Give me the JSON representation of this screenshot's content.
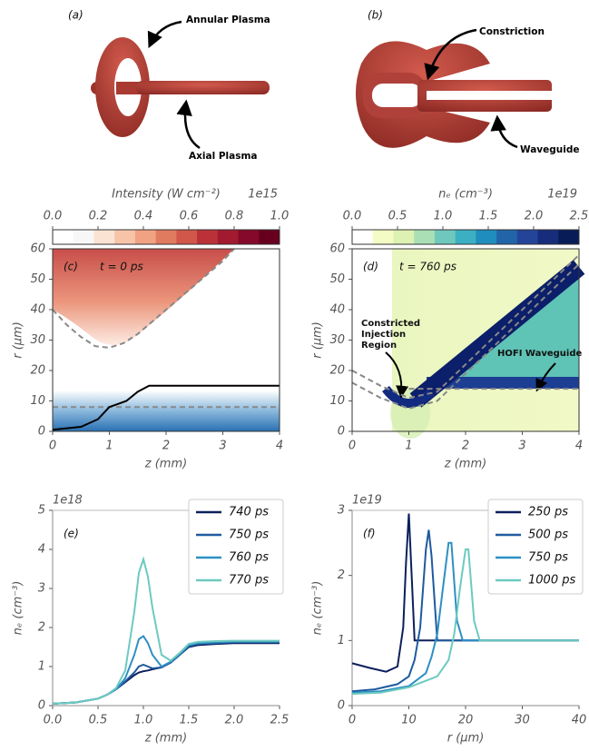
{
  "diagrams": [
    {
      "label": "(a)",
      "callouts": [
        "Annular Plasma",
        "Axial Plasma"
      ]
    },
    {
      "label": "(b)",
      "callouts": [
        "Constriction",
        "Waveguide"
      ]
    }
  ],
  "chart_data": [
    {
      "type": "heatmap",
      "panel_label": "(c)",
      "annotation": "t = 0 ps",
      "xlabel": "z (mm)",
      "ylabel": "r (μm)",
      "xlim": [
        0,
        4
      ],
      "ylim": [
        0,
        60
      ],
      "xticks": [
        0,
        1,
        2,
        3,
        4
      ],
      "yticks": [
        0,
        10,
        20,
        30,
        40,
        50,
        60
      ],
      "colorbar_label": "Intensity (W cm⁻²)",
      "colorbar_offset": "1e15",
      "clim": [
        0,
        1
      ],
      "cticks": [
        {
          "value": 0,
          "label": "0.0"
        },
        {
          "value": 0.2,
          "label": "0.2"
        },
        {
          "value": 0.4,
          "label": "0.4"
        },
        {
          "value": 0.6,
          "label": "0.6"
        },
        {
          "value": 0.8,
          "label": "0.8"
        },
        {
          "value": 1,
          "label": "1.0"
        }
      ],
      "colormap": [
        "#ffffff",
        "#f7f7f7",
        "#fbe3d4",
        "#f7c4a8",
        "#f0a283",
        "#e07b60",
        "#d0574a",
        "#bb3138",
        "#a21a2f",
        "#85092a",
        "#67001f"
      ],
      "series": [
        {
          "color": "#888888",
          "style": "dashed",
          "x": [
            0,
            0.25,
            0.5,
            0.75,
            1,
            1.25,
            1.5,
            2,
            2.5,
            3,
            3.2
          ],
          "values": [
            40,
            35,
            31,
            28,
            27.5,
            29,
            32,
            40,
            48,
            56,
            60
          ]
        },
        {
          "color": "#888888",
          "style": "dashed",
          "x": [
            0,
            4
          ],
          "values": [
            8,
            8
          ]
        },
        {
          "color": "#000000",
          "style": "solid",
          "x": [
            0,
            0.5,
            0.8,
            1,
            1.3,
            1.5,
            1.7,
            2,
            4
          ],
          "values": [
            0.5,
            1.5,
            4,
            8,
            10,
            13,
            15,
            15,
            15
          ]
        }
      ]
    },
    {
      "type": "heatmap",
      "panel_label": "(d)",
      "annotation": "t = 760 ps",
      "xlabel": "z (mm)",
      "ylabel": "r (μm)",
      "xlim": [
        0,
        4
      ],
      "ylim": [
        0,
        60
      ],
      "xticks": [
        0,
        1,
        2,
        3,
        4
      ],
      "yticks": [
        0,
        10,
        20,
        30,
        40,
        50,
        60
      ],
      "colorbar_label": "nₑ (cm⁻³)",
      "colorbar_offset": "1e19",
      "clim": [
        0,
        2.5
      ],
      "cticks": [
        {
          "value": 0,
          "label": "0.0"
        },
        {
          "value": 0.5,
          "label": "0.5"
        },
        {
          "value": 1,
          "label": "1.0"
        },
        {
          "value": 1.5,
          "label": "1.5"
        },
        {
          "value": 2,
          "label": "2.0"
        },
        {
          "value": 2.5,
          "label": "2.5"
        }
      ],
      "colormap": [
        "#ffffff",
        "#f4fbc4",
        "#dcf1b2",
        "#aadfb6",
        "#6fc8bd",
        "#3bb0c3",
        "#1f8dbd",
        "#2165a8",
        "#24449a",
        "#172c7a",
        "#081d58"
      ],
      "notes": [
        [
          "Constricted",
          "Injection",
          "Region"
        ],
        [
          "HOFI Waveguide"
        ]
      ],
      "series": [
        {
          "color": "#888888",
          "style": "dashed",
          "x": [
            0,
            0.5,
            1,
            1.5,
            2,
            3,
            4
          ],
          "values": [
            20,
            15,
            11,
            13,
            22,
            40,
            58
          ]
        },
        {
          "color": "#888888",
          "style": "dashed",
          "x": [
            0,
            0.5,
            1,
            1.5,
            2,
            3,
            4
          ],
          "values": [
            16,
            11,
            7.5,
            10,
            19,
            37,
            55
          ]
        },
        {
          "color": "#888888",
          "style": "dashed",
          "x": [
            1,
            4
          ],
          "values": [
            14,
            14
          ]
        }
      ]
    },
    {
      "type": "line",
      "panel_label": "(e)",
      "xlabel": "z (mm)",
      "ylabel": "nₑ (cm⁻³)",
      "offset": "1e18",
      "xlim": [
        0,
        2.5
      ],
      "ylim": [
        0,
        5
      ],
      "xticks": [
        {
          "value": 0,
          "label": "0.0"
        },
        {
          "value": 0.5,
          "label": "0.5"
        },
        {
          "value": 1,
          "label": "1.0"
        },
        {
          "value": 1.5,
          "label": "1.5"
        },
        {
          "value": 2,
          "label": "2.0"
        },
        {
          "value": 2.5,
          "label": "2.5"
        }
      ],
      "yticks": [
        0,
        1,
        2,
        3,
        4,
        5
      ],
      "legend": "upper right",
      "x": [
        0,
        0.25,
        0.5,
        0.6,
        0.7,
        0.8,
        0.9,
        0.95,
        1.0,
        1.05,
        1.1,
        1.2,
        1.3,
        1.4,
        1.5,
        1.6,
        1.8,
        2.0,
        2.5
      ],
      "series": [
        {
          "name": "740 ps",
          "color": "#0d1f5c",
          "values": [
            0.05,
            0.08,
            0.18,
            0.28,
            0.42,
            0.6,
            0.78,
            0.85,
            0.88,
            0.9,
            0.93,
            0.98,
            1.1,
            1.3,
            1.5,
            1.55,
            1.58,
            1.6,
            1.6
          ]
        },
        {
          "name": "750 ps",
          "color": "#1f5a9e",
          "values": [
            0.05,
            0.08,
            0.18,
            0.28,
            0.42,
            0.62,
            0.85,
            1.0,
            1.05,
            1.0,
            0.95,
            0.98,
            1.1,
            1.3,
            1.52,
            1.58,
            1.6,
            1.62,
            1.62
          ]
        },
        {
          "name": "760 ps",
          "color": "#2e8fc4",
          "values": [
            0.05,
            0.08,
            0.18,
            0.28,
            0.42,
            0.7,
            1.3,
            1.7,
            1.78,
            1.6,
            1.3,
            1.0,
            1.12,
            1.32,
            1.55,
            1.6,
            1.62,
            1.64,
            1.64
          ]
        },
        {
          "name": "770 ps",
          "color": "#6ccac0",
          "values": [
            0.05,
            0.08,
            0.18,
            0.28,
            0.45,
            0.9,
            2.4,
            3.4,
            3.75,
            3.3,
            2.5,
            1.3,
            1.15,
            1.35,
            1.58,
            1.63,
            1.65,
            1.66,
            1.66
          ]
        }
      ]
    },
    {
      "type": "line",
      "panel_label": "(f)",
      "xlabel": "r (μm)",
      "ylabel": "nₑ (cm⁻³)",
      "offset": "1e19",
      "xlim": [
        0,
        40
      ],
      "ylim": [
        0,
        3
      ],
      "xticks": [
        0,
        10,
        20,
        30,
        40
      ],
      "yticks": [
        0,
        1,
        2,
        3
      ],
      "legend": "upper right",
      "series": [
        {
          "name": "250 ps",
          "color": "#0d1f5c",
          "x": [
            0,
            3,
            6,
            8,
            9,
            9.5,
            10,
            10.5,
            11,
            12,
            14,
            40
          ],
          "values": [
            0.65,
            0.58,
            0.52,
            0.6,
            1.2,
            2.2,
            2.95,
            2.0,
            1.0,
            1.0,
            1.0,
            1.0
          ]
        },
        {
          "name": "500 ps",
          "color": "#1f5a9e",
          "x": [
            0,
            4,
            8,
            10,
            11,
            12,
            13,
            13.5,
            14,
            15,
            16,
            40
          ],
          "values": [
            0.22,
            0.25,
            0.33,
            0.45,
            0.7,
            1.2,
            2.4,
            2.7,
            2.3,
            1.0,
            1.0,
            1.0
          ]
        },
        {
          "name": "750 ps",
          "color": "#2e8fc4",
          "x": [
            0,
            5,
            10,
            13,
            14,
            15,
            16,
            17,
            17.5,
            18.5,
            19.5,
            40
          ],
          "values": [
            0.2,
            0.22,
            0.3,
            0.5,
            0.75,
            1.1,
            1.8,
            2.5,
            2.5,
            1.3,
            1.0,
            1.0
          ]
        },
        {
          "name": "1000 ps",
          "color": "#6ccac0",
          "x": [
            0,
            5,
            10,
            15,
            17,
            18,
            19,
            20,
            20.5,
            21.5,
            22.5,
            40
          ],
          "values": [
            0.18,
            0.2,
            0.28,
            0.45,
            0.7,
            1.1,
            1.8,
            2.4,
            2.4,
            1.3,
            1.0,
            1.0
          ]
        }
      ]
    }
  ]
}
